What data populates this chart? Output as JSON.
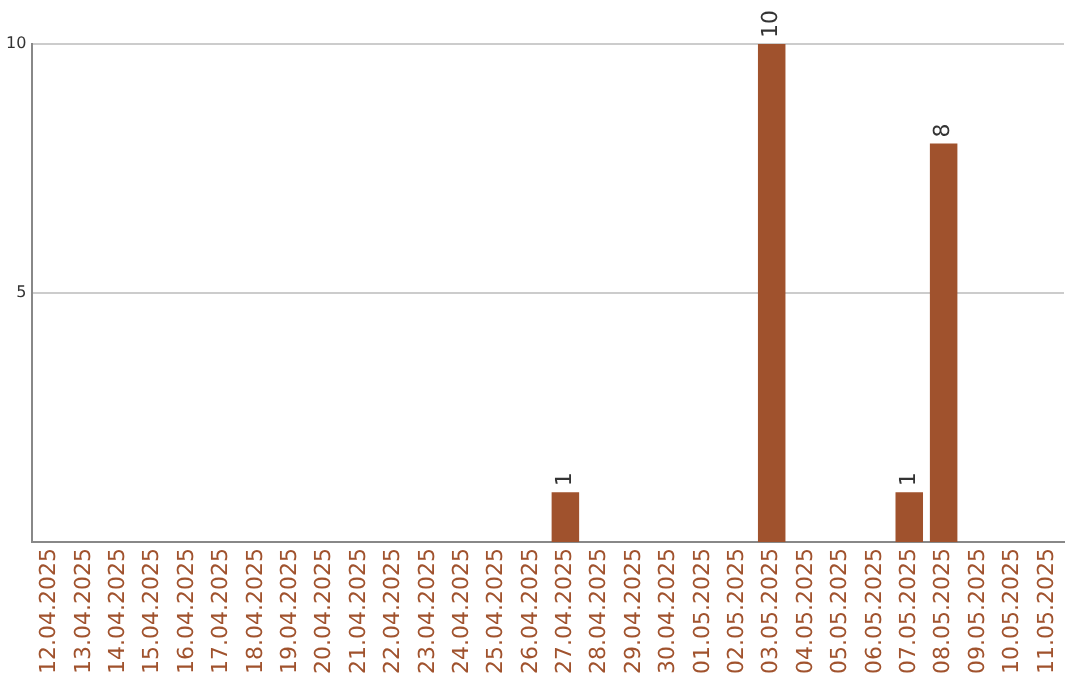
{
  "chart_data": {
    "type": "bar",
    "categories": [
      "12.04.2025",
      "13.04.2025",
      "14.04.2025",
      "15.04.2025",
      "16.04.2025",
      "17.04.2025",
      "18.04.2025",
      "19.04.2025",
      "20.04.2025",
      "21.04.2025",
      "22.04.2025",
      "23.04.2025",
      "24.04.2025",
      "25.04.2025",
      "26.04.2025",
      "27.04.2025",
      "28.04.2025",
      "29.04.2025",
      "30.04.2025",
      "01.05.2025",
      "02.05.2025",
      "03.05.2025",
      "04.05.2025",
      "05.05.2025",
      "06.05.2025",
      "07.05.2025",
      "08.05.2025",
      "09.05.2025",
      "10.05.2025",
      "11.05.2025"
    ],
    "values": [
      0,
      0,
      0,
      0,
      0,
      0,
      0,
      0,
      0,
      0,
      0,
      0,
      0,
      0,
      0,
      1,
      0,
      0,
      0,
      0,
      0,
      10,
      0,
      0,
      0,
      1,
      8,
      0,
      0,
      0
    ],
    "value_labels": [
      null,
      null,
      null,
      null,
      null,
      null,
      null,
      null,
      null,
      null,
      null,
      null,
      null,
      null,
      null,
      "1",
      null,
      null,
      null,
      null,
      null,
      "10",
      null,
      null,
      null,
      "1",
      "8",
      null,
      null,
      null
    ],
    "color": "#a0522d",
    "ylim": [
      0,
      10
    ],
    "yticks": [
      5,
      10
    ],
    "grid": "y",
    "legend": false
  }
}
